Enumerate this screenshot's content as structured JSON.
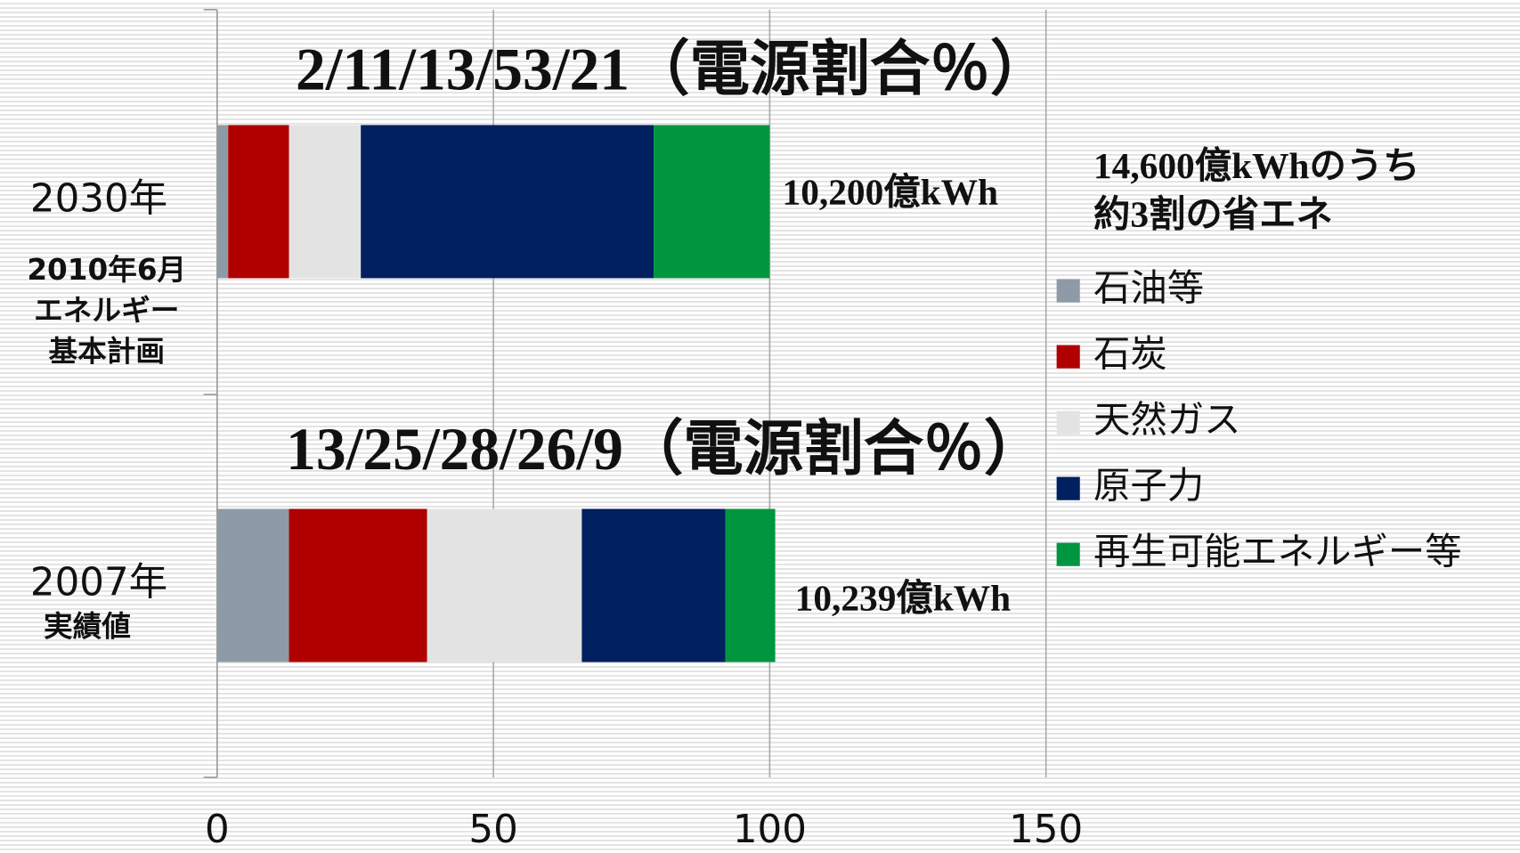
{
  "chart_data": {
    "type": "stacked_barh",
    "categories": [
      "2030年",
      "2007年"
    ],
    "category_notes": [
      [
        "2010年6月",
        "エネルギー",
        "基本計画"
      ],
      [
        "実績値"
      ]
    ],
    "bar_titles": [
      "2/11/13/53/21（電源割合％）",
      "13/25/28/26/9（電源割合％）"
    ],
    "total_labels": [
      "10,200億kWh",
      "10,239億kWh"
    ],
    "note": [
      "14,600億kWhのうち",
      "約3割の省エネ"
    ],
    "series": [
      {
        "name": "石油等",
        "color": "#8e9aa8",
        "values": [
          2,
          13
        ]
      },
      {
        "name": "石炭",
        "color": "#b00000",
        "values": [
          11,
          25
        ]
      },
      {
        "name": "天然ガス",
        "color": "#e3e3e3",
        "values": [
          13,
          28
        ]
      },
      {
        "name": "原子力",
        "color": "#002060",
        "values": [
          53,
          26
        ]
      },
      {
        "name": "再生可能エネルギー等",
        "color": "#00963f",
        "values": [
          21,
          9
        ]
      }
    ],
    "xlim": [
      0,
      150
    ],
    "xticks": [
      0,
      50,
      100,
      150
    ],
    "grid": true
  }
}
